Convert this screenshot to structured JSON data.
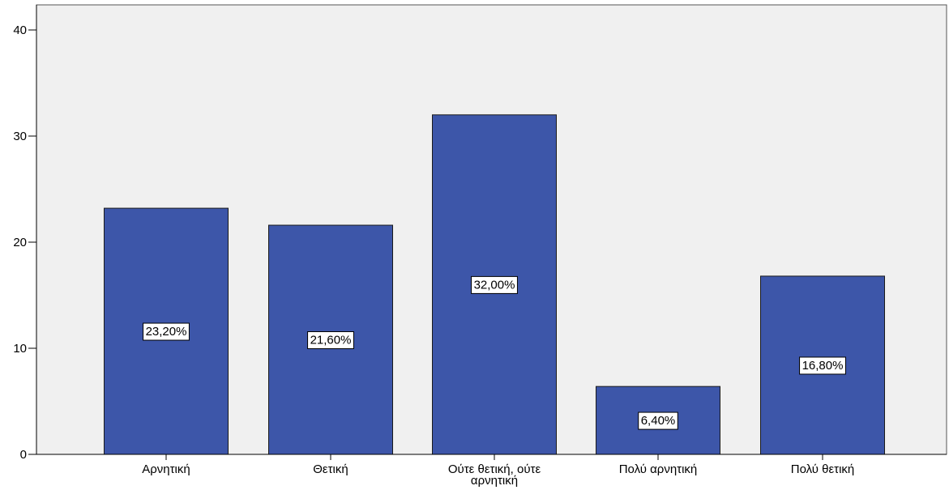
{
  "chart_data": {
    "type": "bar",
    "categories": [
      [
        "Αρνητική"
      ],
      [
        "Θετική"
      ],
      [
        "Ούτε θετική, ούτε",
        "αρνητική"
      ],
      [
        "Πολύ αρνητική"
      ],
      [
        "Πολύ θετική"
      ]
    ],
    "values": [
      23.2,
      21.6,
      32.0,
      6.4,
      16.8
    ],
    "data_labels": [
      "23,20%",
      "21,60%",
      "32,00%",
      "6,40%",
      "16,80%"
    ],
    "title": "",
    "xlabel": "",
    "ylabel": "",
    "ylim": [
      0,
      40
    ],
    "yticks": [
      0,
      10,
      20,
      30,
      40
    ],
    "grid": false,
    "colors": {
      "bar_fill": "#3D56A9",
      "bar_stroke": "#1a1a1a",
      "plot_background": "#F0F0F0",
      "axis": "#000000",
      "label_box_fill": "#FFFFFF"
    }
  }
}
